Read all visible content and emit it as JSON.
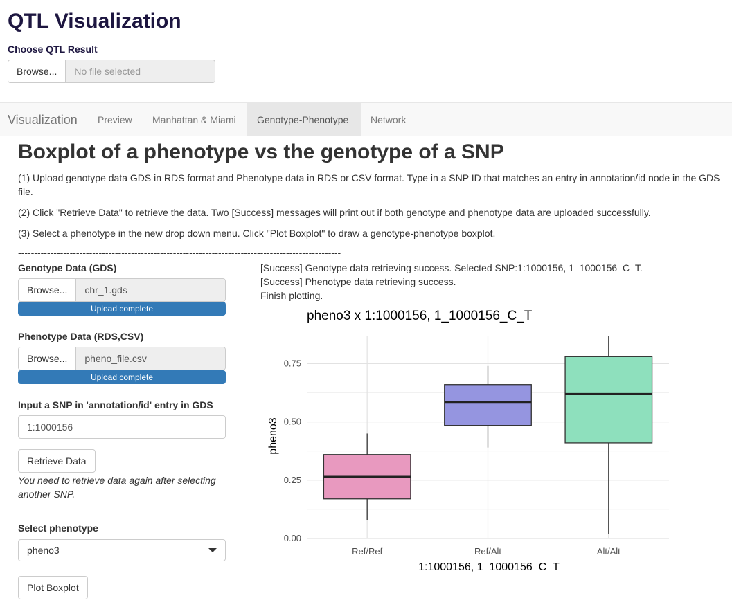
{
  "app": {
    "title": "QTL Visualization",
    "choose_label": "Choose QTL Result",
    "browse_label": "Browse...",
    "file_placeholder": "No file selected"
  },
  "nav": {
    "brand": "Visualization",
    "tabs": [
      "Preview",
      "Manhattan & Miami",
      "Genotype-Phenotype",
      "Network"
    ],
    "active_tab": "Genotype-Phenotype"
  },
  "main": {
    "heading": "Boxplot of a phenotype vs the genotype of a SNP",
    "instructions": [
      "(1) Upload genotype data GDS in RDS format and Phenotype data in RDS or CSV format. Type in a SNP ID that matches an entry in annotation/id node in the GDS file.",
      "(2) Click \"Retrieve Data\" to retrieve the data. Two [Success] messages will print out if both genotype and phenotype data are uploaded successfully.",
      "(3) Select a phenotype in the new drop down menu. Click \"Plot Boxplot\" to draw a genotype-phenotype boxplot."
    ],
    "separator": "----------------------------------------------------------------------------------------------------"
  },
  "sidebar": {
    "genotype_label": "Genotype Data (GDS)",
    "genotype_browse": "Browse...",
    "genotype_file": "chr_1.gds",
    "genotype_progress": "Upload complete",
    "phenotype_label": "Phenotype Data (RDS,CSV)",
    "phenotype_browse": "Browse...",
    "phenotype_file": "pheno_file.csv",
    "phenotype_progress": "Upload complete",
    "snp_label": "Input a SNP in 'annotation/id' entry in GDS",
    "snp_value": "1:1000156",
    "retrieve_button": "Retrieve Data",
    "retrieve_help": "You need to retrieve data again after selecting another SNP.",
    "select_label": "Select phenotype",
    "select_value": "pheno3",
    "plot_button": "Plot Boxplot"
  },
  "output": {
    "status": [
      "[Success] Genotype data retrieving success. Selected SNP:1:1000156, 1_1000156_C_T.",
      "[Success] Phenotype data retrieving success.",
      "Finish plotting."
    ]
  },
  "chart_data": {
    "type": "boxplot",
    "title": "pheno3 x 1:1000156, 1_1000156_C_T",
    "xlabel": "1:1000156, 1_1000156_C_T",
    "ylabel": "pheno3",
    "ylim": [
      0.0,
      0.87
    ],
    "yticks": [
      "0.00",
      "0.25",
      "0.50",
      "0.75"
    ],
    "categories": [
      "Ref/Ref",
      "Ref/Alt",
      "Alt/Alt"
    ],
    "boxes": [
      {
        "category": "Ref/Ref",
        "min": 0.08,
        "q1": 0.17,
        "median": 0.265,
        "q3": 0.36,
        "max": 0.45,
        "color": "#e899bf"
      },
      {
        "category": "Ref/Alt",
        "min": 0.39,
        "q1": 0.485,
        "median": 0.585,
        "q3": 0.66,
        "max": 0.74,
        "color": "#9595e0"
      },
      {
        "category": "Alt/Alt",
        "min": 0.02,
        "q1": 0.41,
        "median": 0.62,
        "q3": 0.78,
        "max": 0.87,
        "color": "#8ee0bd"
      }
    ],
    "grid": true,
    "legend": "none"
  }
}
